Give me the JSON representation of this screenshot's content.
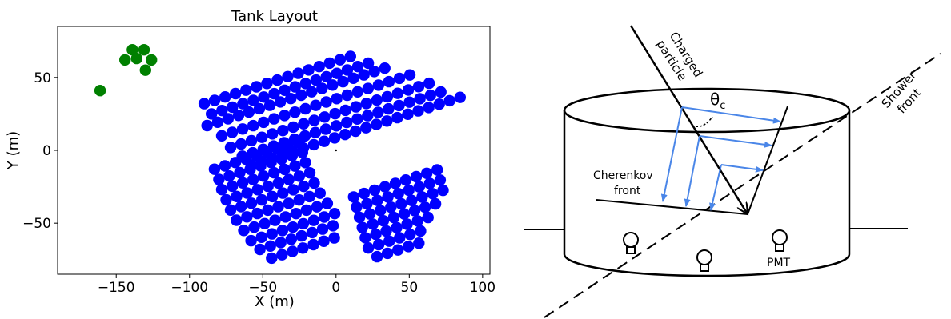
{
  "chart_data": {
    "type": "scatter",
    "title": "Tank Layout",
    "xlabel": "X (m)",
    "ylabel": "Y (m)",
    "xlim": [
      -190,
      105
    ],
    "ylim": [
      -85,
      85
    ],
    "xticks": [
      -150,
      -100,
      -50,
      0,
      50,
      100
    ],
    "yticks": [
      -50,
      0,
      50
    ],
    "xtick_labels": [
      "−150",
      "−100",
      "−50",
      "0",
      "50",
      "100"
    ],
    "ytick_labels": [
      "−50",
      "0",
      "50"
    ],
    "grid": false,
    "colors": {
      "main": "#0000ff",
      "outrigger": "#008000"
    },
    "outrigger_points": [
      {
        "x": -161,
        "y": 41
      },
      {
        "x": -144,
        "y": 62
      },
      {
        "x": -139,
        "y": 69
      },
      {
        "x": -136,
        "y": 63
      },
      {
        "x": -131,
        "y": 69
      },
      {
        "x": -130,
        "y": 55
      },
      {
        "x": -126,
        "y": 62
      }
    ],
    "main_array": {
      "row_angle_deg": 18,
      "tank_spacing_m": 7.5,
      "upper_rows": [
        {
          "start": [
            -90,
            32
          ],
          "count": 15
        },
        {
          "start": [
            -85,
            25
          ],
          "count": 16
        },
        {
          "start": [
            -88,
            17
          ],
          "count": 18
        },
        {
          "start": [
            -78,
            10
          ],
          "count": 19
        },
        {
          "start": [
            -72,
            2
          ],
          "count": 20
        },
        {
          "start": [
            -64,
            -4
          ],
          "count": 20
        },
        {
          "start": [
            -58,
            -10
          ],
          "count": 21
        }
      ],
      "lower_left_rows": [
        {
          "start": [
            -83,
            -13
          ],
          "count": 9
        },
        {
          "start": [
            -80,
            -20
          ],
          "count": 9
        },
        {
          "start": [
            -78,
            -27
          ],
          "count": 9
        },
        {
          "start": [
            -75,
            -34
          ],
          "count": 9
        },
        {
          "start": [
            -72,
            -41
          ],
          "count": 9
        },
        {
          "start": [
            -68,
            -48
          ],
          "count": 9
        },
        {
          "start": [
            -63,
            -55
          ],
          "count": 9
        },
        {
          "start": [
            -58,
            -62
          ],
          "count": 9
        },
        {
          "start": [
            -52,
            -68
          ],
          "count": 8
        },
        {
          "start": [
            -44,
            -74
          ],
          "count": 7
        }
      ],
      "lower_right_rows": [
        {
          "start": [
            12,
            -32
          ],
          "count": 9
        },
        {
          "start": [
            14,
            -39
          ],
          "count": 9
        },
        {
          "start": [
            16,
            -46
          ],
          "count": 9
        },
        {
          "start": [
            18,
            -53
          ],
          "count": 8
        },
        {
          "start": [
            20,
            -60
          ],
          "count": 7
        },
        {
          "start": [
            22,
            -67
          ],
          "count": 6
        },
        {
          "start": [
            28,
            -73
          ],
          "count": 5
        }
      ]
    }
  },
  "diagram": {
    "labels": {
      "charged_particle_line1": "Charged",
      "charged_particle_line2": "particle",
      "shower_front_line1": "Shower",
      "shower_front_line2": "front",
      "cherenkov_front_line1": "Cherenkov",
      "cherenkov_front_line2": "front",
      "angle_symbol": "θ",
      "angle_subscript": "c",
      "pmt": "PMT"
    },
    "colors": {
      "photon_rays": "#4a86e8",
      "lines": "#000000"
    }
  }
}
